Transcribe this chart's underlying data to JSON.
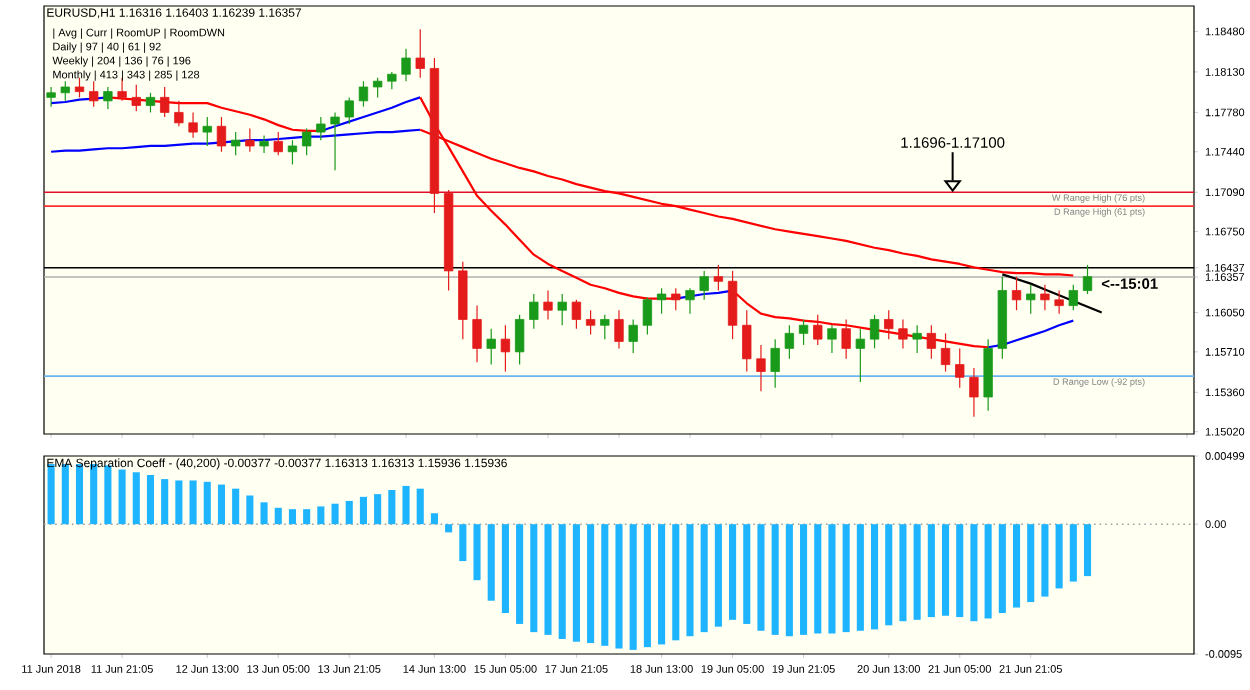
{
  "chart_data": [
    {
      "type": "candlestick",
      "title": "EURUSD,H1 1.16316 1.16403 1.16239 1.16357",
      "categories": [
        null,
        null,
        null,
        null,
        null,
        null,
        null,
        null,
        null,
        null,
        null,
        null,
        null,
        null,
        null,
        null,
        null,
        null,
        null,
        null,
        null,
        null,
        null,
        null,
        null,
        null,
        null,
        null,
        null,
        null,
        null,
        null,
        null,
        null,
        null,
        null,
        null,
        null,
        null,
        null,
        null,
        null,
        null,
        null,
        null,
        null,
        null,
        null,
        null,
        null,
        null,
        null,
        null,
        null,
        null,
        null,
        null,
        null,
        null,
        null,
        null,
        null,
        null,
        null,
        null,
        null,
        null,
        null,
        null,
        null,
        null,
        null,
        null,
        null,
        null,
        null,
        null,
        null,
        null,
        null,
        null
      ],
      "ohlc": [
        [
          1.1791,
          1.18,
          1.1783,
          1.1795
        ],
        [
          1.1795,
          1.1805,
          1.1788,
          1.18
        ],
        [
          1.18,
          1.1808,
          1.1791,
          1.1796
        ],
        [
          1.1796,
          1.1805,
          1.1783,
          1.1788
        ],
        [
          1.1788,
          1.18,
          1.1781,
          1.1796
        ],
        [
          1.1796,
          1.1808,
          1.1788,
          1.1791
        ],
        [
          1.1791,
          1.1802,
          1.1779,
          1.1784
        ],
        [
          1.1784,
          1.1795,
          1.1778,
          1.1791
        ],
        [
          1.1791,
          1.18,
          1.1774,
          1.1778
        ],
        [
          1.1778,
          1.1788,
          1.1766,
          1.1769
        ],
        [
          1.1769,
          1.1778,
          1.1756,
          1.1761
        ],
        [
          1.1761,
          1.1774,
          1.1749,
          1.1766
        ],
        [
          1.1766,
          1.1774,
          1.1744,
          1.1749
        ],
        [
          1.1749,
          1.1761,
          1.1741,
          1.1754
        ],
        [
          1.1754,
          1.1764,
          1.1744,
          1.1749
        ],
        [
          1.1749,
          1.1758,
          1.1743,
          1.1753
        ],
        [
          1.1753,
          1.1761,
          1.1741,
          1.1744
        ],
        [
          1.1744,
          1.1754,
          1.1733,
          1.1749
        ],
        [
          1.1749,
          1.1764,
          1.1741,
          1.1761
        ],
        [
          1.1761,
          1.1774,
          1.1754,
          1.1768
        ],
        [
          1.1768,
          1.1778,
          1.1728,
          1.1774
        ],
        [
          1.1774,
          1.1791,
          1.1768,
          1.1788
        ],
        [
          1.1788,
          1.1805,
          1.1783,
          1.18
        ],
        [
          1.18,
          1.1808,
          1.1791,
          1.1805
        ],
        [
          1.1805,
          1.1813,
          1.1798,
          1.1811
        ],
        [
          1.1811,
          1.1833,
          1.1805,
          1.1825
        ],
        [
          1.1825,
          1.185,
          1.1808,
          1.1816
        ],
        [
          1.1816,
          1.1825,
          1.1691,
          1.1708
        ],
        [
          1.1708,
          1.1711,
          1.1624,
          1.1641
        ],
        [
          1.1641,
          1.1649,
          1.1582,
          1.1599
        ],
        [
          1.1599,
          1.1611,
          1.1562,
          1.1574
        ],
        [
          1.1574,
          1.1591,
          1.156,
          1.1582
        ],
        [
          1.1582,
          1.1594,
          1.1554,
          1.1571
        ],
        [
          1.1571,
          1.1603,
          1.156,
          1.1599
        ],
        [
          1.1599,
          1.1621,
          1.1591,
          1.1614
        ],
        [
          1.1614,
          1.1624,
          1.1599,
          1.1607
        ],
        [
          1.1607,
          1.1621,
          1.1594,
          1.1614
        ],
        [
          1.1614,
          1.1616,
          1.1591,
          1.1599
        ],
        [
          1.1599,
          1.1607,
          1.1586,
          1.1594
        ],
        [
          1.1594,
          1.1603,
          1.1582,
          1.1599
        ],
        [
          1.1599,
          1.1607,
          1.1574,
          1.158
        ],
        [
          1.158,
          1.1599,
          1.157,
          1.1594
        ],
        [
          1.1594,
          1.1618,
          1.1586,
          1.1616
        ],
        [
          1.1616,
          1.1626,
          1.1604,
          1.1621
        ],
        [
          1.1621,
          1.1626,
          1.1607,
          1.1616
        ],
        [
          1.1616,
          1.1626,
          1.1604,
          1.1624
        ],
        [
          1.1624,
          1.1641,
          1.1616,
          1.1636
        ],
        [
          1.1636,
          1.1646,
          1.1624,
          1.1632
        ],
        [
          1.1632,
          1.1641,
          1.1582,
          1.1594
        ],
        [
          1.1594,
          1.1607,
          1.1554,
          1.1565
        ],
        [
          1.1565,
          1.1577,
          1.1537,
          1.1554
        ],
        [
          1.1554,
          1.1582,
          1.154,
          1.1574
        ],
        [
          1.1574,
          1.1594,
          1.1565,
          1.1587
        ],
        [
          1.1587,
          1.1599,
          1.1577,
          1.1594
        ],
        [
          1.1594,
          1.1603,
          1.1577,
          1.1582
        ],
        [
          1.1582,
          1.1594,
          1.157,
          1.1591
        ],
        [
          1.1591,
          1.1599,
          1.1565,
          1.1574
        ],
        [
          1.1574,
          1.1591,
          1.1545,
          1.1582
        ],
        [
          1.1582,
          1.1603,
          1.1574,
          1.1599
        ],
        [
          1.1599,
          1.1607,
          1.1582,
          1.1591
        ],
        [
          1.1591,
          1.1599,
          1.1574,
          1.1582
        ],
        [
          1.1582,
          1.1594,
          1.157,
          1.1587
        ],
        [
          1.1587,
          1.1594,
          1.1565,
          1.1574
        ],
        [
          1.1574,
          1.1587,
          1.1554,
          1.156
        ],
        [
          1.156,
          1.1574,
          1.154,
          1.1549
        ],
        [
          1.1549,
          1.1557,
          1.1515,
          1.1532
        ],
        [
          1.1532,
          1.1582,
          1.152,
          1.1574
        ],
        [
          1.1574,
          1.1636,
          1.1565,
          1.1624
        ],
        [
          1.1624,
          1.1636,
          1.1607,
          1.1616
        ],
        [
          1.1616,
          1.1629,
          1.1604,
          1.1621
        ],
        [
          1.1621,
          1.1629,
          1.1607,
          1.1616
        ],
        [
          1.1616,
          1.1624,
          1.1604,
          1.1611
        ],
        [
          1.1611,
          1.1629,
          1.1607,
          1.1624
        ],
        [
          1.1624,
          1.1646,
          1.1621,
          1.1636
        ],
        null,
        null,
        null,
        null,
        null,
        null,
        null
      ],
      "colors": [
        "#1a9a1a",
        "#1a9a1a",
        "#e41b1b",
        "#e41b1b",
        "#1a9a1a",
        "#e41b1b",
        "#e41b1b",
        "#1a9a1a",
        "#e41b1b",
        "#e41b1b",
        "#e41b1b",
        "#1a9a1a",
        "#e41b1b",
        "#1a9a1a",
        "#e41b1b",
        "#1a9a1a",
        "#e41b1b",
        "#1a9a1a",
        "#1a9a1a",
        "#1a9a1a",
        "#1a9a1a",
        "#1a9a1a",
        "#1a9a1a",
        "#1a9a1a",
        "#1a9a1a",
        "#1a9a1a",
        "#e41b1b",
        "#e41b1b",
        "#e41b1b",
        "#e41b1b",
        "#e41b1b",
        "#1a9a1a",
        "#e41b1b",
        "#1a9a1a",
        "#1a9a1a",
        "#e41b1b",
        "#1a9a1a",
        "#e41b1b",
        "#e41b1b",
        "#1a9a1a",
        "#e41b1b",
        "#1a9a1a",
        "#1a9a1a",
        "#1a9a1a",
        "#e41b1b",
        "#1a9a1a",
        "#1a9a1a",
        "#e41b1b",
        "#e41b1b",
        "#e41b1b",
        "#e41b1b",
        "#1a9a1a",
        "#1a9a1a",
        "#1a9a1a",
        "#e41b1b",
        "#1a9a1a",
        "#e41b1b",
        "#1a9a1a",
        "#1a9a1a",
        "#e41b1b",
        "#e41b1b",
        "#1a9a1a",
        "#e41b1b",
        "#e41b1b",
        "#e41b1b",
        "#e41b1b",
        "#1a9a1a",
        "#1a9a1a",
        "#e41b1b",
        "#1a9a1a",
        "#e41b1b",
        "#e41b1b",
        "#1a9a1a",
        "#1a9a1a",
        null,
        null,
        null,
        null,
        null,
        null,
        null
      ],
      "series": [
        {
          "type": "line",
          "color": "#0000ff",
          "values": [
            1.1786,
            1.1787,
            1.1789,
            1.179,
            1.1791,
            null,
            null,
            null,
            null,
            null,
            null,
            null,
            null,
            null,
            null,
            null,
            null,
            null,
            null,
            null,
            null,
            null,
            null,
            null,
            null,
            null,
            null,
            null,
            null,
            null,
            null,
            null,
            null,
            null,
            null,
            null,
            null,
            null,
            null,
            null,
            null,
            null,
            null,
            null,
            null,
            null,
            null,
            null,
            null,
            null,
            null,
            null,
            null,
            null,
            null,
            null,
            null,
            null,
            null,
            null,
            null,
            null,
            null,
            null,
            null,
            null,
            null,
            null,
            null,
            null,
            null,
            null,
            null,
            null,
            null,
            null,
            null,
            null,
            null,
            null,
            null
          ]
        },
        {
          "type": "line",
          "color": "#ff0000",
          "values": [
            null,
            null,
            null,
            null,
            1.1791,
            1.179,
            1.1789,
            1.1788,
            1.1787,
            1.1786,
            1.1786,
            1.1786,
            1.1782,
            1.1779,
            1.1776,
            1.1772,
            1.1767,
            1.1763,
            1.1762,
            1.1762,
            null,
            null,
            null,
            null,
            null,
            null,
            null,
            null,
            null,
            null,
            null,
            null,
            null,
            null,
            null,
            null,
            null,
            null,
            null,
            null,
            null,
            null,
            null,
            null,
            null,
            null,
            null,
            null,
            null,
            null,
            null,
            null,
            null,
            null,
            null,
            null,
            null,
            null,
            null,
            null,
            null,
            null,
            null,
            null,
            null,
            null,
            null,
            null,
            null,
            null,
            null,
            null,
            null,
            null,
            null,
            null,
            null,
            null,
            null,
            null,
            null
          ]
        },
        {
          "type": "line",
          "color": "#0000ff",
          "values": [
            null,
            null,
            null,
            null,
            null,
            null,
            null,
            null,
            null,
            null,
            null,
            null,
            null,
            null,
            null,
            null,
            null,
            null,
            null,
            1.1762,
            1.1766,
            1.177,
            1.1774,
            1.1778,
            1.1782,
            1.1787,
            1.1791,
            null,
            null,
            null,
            null,
            null,
            null,
            null,
            null,
            null,
            null,
            null,
            null,
            null,
            null,
            null,
            null,
            null,
            null,
            null,
            null,
            null,
            null,
            null,
            null,
            null,
            null,
            null,
            null,
            null,
            null,
            null,
            null,
            null,
            null,
            null,
            null,
            null,
            null,
            null,
            null,
            null,
            null,
            null,
            null,
            null,
            null,
            null,
            null,
            null,
            null,
            null,
            null,
            null,
            null
          ]
        },
        {
          "type": "line",
          "color": "#ff0000",
          "values": [
            null,
            null,
            null,
            null,
            null,
            null,
            null,
            null,
            null,
            null,
            null,
            null,
            null,
            null,
            null,
            null,
            null,
            null,
            null,
            null,
            null,
            null,
            null,
            null,
            null,
            null,
            1.1791,
            1.1768,
            1.1748,
            1.1727,
            1.1706,
            1.1693,
            1.1681,
            1.1668,
            1.1655,
            1.1647,
            1.1641,
            1.1635,
            1.1629,
            1.1626,
            1.1622,
            1.1619,
            1.1617,
            1.1617,
            1.1617,
            null,
            null,
            null,
            null,
            null,
            null,
            null,
            null,
            null,
            null,
            null,
            null,
            null,
            null,
            null,
            null,
            null,
            null,
            null,
            null,
            null,
            null,
            null,
            null,
            null,
            null,
            null,
            null,
            null,
            null,
            null,
            null,
            null,
            null,
            null,
            null
          ]
        },
        {
          "type": "line",
          "color": "#0000ff",
          "values": [
            null,
            null,
            null,
            null,
            null,
            null,
            null,
            null,
            null,
            null,
            null,
            null,
            null,
            null,
            null,
            null,
            null,
            null,
            null,
            null,
            null,
            null,
            null,
            null,
            null,
            null,
            null,
            null,
            null,
            null,
            null,
            null,
            null,
            null,
            null,
            null,
            null,
            null,
            null,
            null,
            null,
            null,
            null,
            null,
            1.1617,
            1.1619,
            1.1621,
            1.1622,
            1.1624,
            null,
            null,
            null,
            null,
            null,
            null,
            null,
            null,
            null,
            null,
            null,
            null,
            null,
            null,
            null,
            null,
            null,
            null,
            null,
            null,
            null,
            null,
            null,
            null,
            null,
            null,
            null,
            null,
            null,
            null,
            null,
            null
          ]
        },
        {
          "type": "line",
          "color": "#ff0000",
          "values": [
            null,
            null,
            null,
            null,
            null,
            null,
            null,
            null,
            null,
            null,
            null,
            null,
            null,
            null,
            null,
            null,
            null,
            null,
            null,
            null,
            null,
            null,
            null,
            null,
            null,
            null,
            null,
            null,
            null,
            null,
            null,
            null,
            null,
            null,
            null,
            null,
            null,
            null,
            null,
            null,
            null,
            null,
            null,
            null,
            null,
            null,
            null,
            null,
            1.1624,
            1.1613,
            1.1604,
            1.1601,
            1.16,
            1.1598,
            1.1597,
            1.1595,
            1.1594,
            1.1592,
            1.159,
            1.1588,
            1.1586,
            1.1584,
            1.1582,
            1.158,
            1.1578,
            1.1576,
            1.1575,
            null,
            null,
            null,
            null,
            null,
            null,
            null,
            null,
            null,
            null,
            null,
            null,
            null,
            null
          ]
        },
        {
          "type": "line",
          "color": "#0000ff",
          "values": [
            null,
            null,
            null,
            null,
            null,
            null,
            null,
            null,
            null,
            null,
            null,
            null,
            null,
            null,
            null,
            null,
            null,
            null,
            null,
            null,
            null,
            null,
            null,
            null,
            null,
            null,
            null,
            null,
            null,
            null,
            null,
            null,
            null,
            null,
            null,
            null,
            null,
            null,
            null,
            null,
            null,
            null,
            null,
            null,
            null,
            null,
            null,
            null,
            null,
            null,
            null,
            null,
            null,
            null,
            null,
            null,
            null,
            null,
            null,
            null,
            null,
            null,
            null,
            null,
            null,
            null,
            1.1575,
            1.1577,
            1.1581,
            1.1585,
            1.1589,
            1.1594,
            1.1598,
            null,
            null,
            null,
            null,
            null,
            null,
            null,
            null
          ]
        },
        {
          "type": "line",
          "color": "#0000ff",
          "values": [
            1.1744,
            1.1745,
            1.1745,
            1.1746,
            1.1747,
            1.1747,
            1.1748,
            1.1749,
            1.1749,
            1.175,
            1.1751,
            1.1751,
            1.1752,
            1.1753,
            1.1754,
            1.1754,
            1.1755,
            1.1756,
            1.1757,
            1.1757,
            1.1758,
            1.1759,
            1.176,
            1.1761,
            1.1761,
            1.1762,
            1.1763,
            null,
            null,
            null,
            null,
            null,
            null,
            null,
            null,
            null,
            null,
            null,
            null,
            null,
            null,
            null,
            null,
            null,
            null,
            null,
            null,
            null,
            null,
            null,
            null,
            null,
            null,
            null,
            null,
            null,
            null,
            null,
            null,
            null,
            null,
            null,
            null,
            null,
            null,
            null,
            null,
            null,
            null,
            null,
            null,
            null,
            null,
            null,
            null,
            null,
            null,
            null,
            null,
            null,
            null
          ]
        },
        {
          "type": "line",
          "color": "#ff0000",
          "values": [
            null,
            null,
            null,
            null,
            null,
            null,
            null,
            null,
            null,
            null,
            null,
            null,
            null,
            null,
            null,
            null,
            null,
            null,
            null,
            null,
            null,
            null,
            null,
            null,
            null,
            null,
            1.1763,
            1.1758,
            1.1753,
            1.1748,
            1.1743,
            1.1738,
            1.1734,
            1.173,
            1.1727,
            1.1723,
            1.172,
            1.1716,
            1.1713,
            1.171,
            1.1708,
            1.1705,
            1.1702,
            1.1699,
            1.1697,
            1.1694,
            1.1691,
            1.1688,
            1.1686,
            1.1683,
            1.168,
            1.1677,
            1.1675,
            1.1673,
            1.1671,
            1.1669,
            1.1667,
            1.1664,
            1.1661,
            1.1659,
            1.1656,
            1.1654,
            1.1651,
            1.1649,
            1.1647,
            1.1644,
            1.1642,
            1.164,
            1.1639,
            1.1639,
            1.1638,
            1.1638,
            1.1637,
            null,
            null,
            null,
            null,
            null,
            null,
            null,
            null
          ]
        },
        {
          "type": "line",
          "color": "#000000",
          "values": [
            null,
            null,
            null,
            null,
            null,
            null,
            null,
            null,
            null,
            null,
            null,
            null,
            null,
            null,
            null,
            null,
            null,
            null,
            null,
            null,
            null,
            null,
            null,
            null,
            null,
            null,
            null,
            null,
            null,
            null,
            null,
            null,
            null,
            null,
            null,
            null,
            null,
            null,
            null,
            null,
            null,
            null,
            null,
            null,
            null,
            null,
            null,
            null,
            null,
            null,
            null,
            null,
            null,
            null,
            null,
            null,
            null,
            null,
            null,
            null,
            null,
            null,
            null,
            null,
            null,
            null,
            null,
            1.1638,
            1.1634,
            1.163,
            1.1625,
            1.162,
            1.1615,
            1.161,
            1.1605,
            null,
            null,
            null,
            null,
            null,
            null
          ]
        }
      ],
      "ylim": [
        1.15,
        1.187
      ],
      "yticks": [
        {
          "value": 1.1848,
          "label": "1.18480"
        },
        {
          "value": 1.1813,
          "label": "1.18130"
        },
        {
          "value": 1.1778,
          "label": "1.17780"
        },
        {
          "value": 1.1744,
          "label": "1.17440"
        },
        {
          "value": 1.1709,
          "label": "1.17090"
        },
        {
          "value": 1.1675,
          "label": "1.16750"
        },
        {
          "value": 1.16437,
          "label": "1.16437"
        },
        {
          "value": 1.16357,
          "label": "1.16357"
        },
        {
          "value": 1.1605,
          "label": "1.16050"
        },
        {
          "value": 1.1571,
          "label": "1.15710"
        },
        {
          "value": 1.1536,
          "label": "1.15360"
        },
        {
          "value": 1.1502,
          "label": "1.15020"
        }
      ],
      "tick_labels": "y",
      "ref_lines": [
        {
          "axis": "y",
          "value": 1.1709,
          "label": "W Range High (76 pts)",
          "color": "#e0102a"
        },
        {
          "axis": "y",
          "value": 1.1697,
          "label": "D Range High (61 pts)",
          "color": "#ff3030"
        },
        {
          "axis": "y",
          "value": 1.155,
          "label": "D Range Low (-92 pts)",
          "color": "#6ab4f0"
        },
        {
          "axis": "y",
          "value": 1.16437,
          "color": "#000000"
        },
        {
          "axis": "y",
          "value": 1.16357,
          "color": "#b0b0b0"
        }
      ],
      "annotations": [
        "| Avg | Curr | RoomUP | RoomDWN",
        "Daily | 97 | 40 | 61 | 92",
        "Weekly | 204 | 136 | 76 | 196",
        "Monthly | 413 | 343 | 285 | 128",
        {
          "text": "1.1696-1.17100",
          "y": 1.1709
        },
        {
          "text": "<--15:01",
          "y": 1.163
        }
      ]
    },
    {
      "type": "bar",
      "title": "EMA Separation Coeff - (40,200) -0.00377 -0.00377 1.16313 1.16313 1.15936 1.15936",
      "categories": [
        "11 Jun 2018",
        null,
        null,
        null,
        null,
        "11 Jun 21:05",
        null,
        null,
        null,
        null,
        null,
        "12 Jun 13:00",
        null,
        null,
        null,
        null,
        "13 Jun 05:00",
        null,
        null,
        null,
        null,
        "13 Jun 21:05",
        null,
        null,
        null,
        null,
        null,
        "14 Jun 13:00",
        null,
        null,
        null,
        null,
        "15 Jun 05:00",
        null,
        null,
        null,
        null,
        "17 Jun 21:05",
        null,
        null,
        null,
        null,
        null,
        "18 Jun 13:00",
        null,
        null,
        null,
        null,
        "19 Jun 05:00",
        null,
        null,
        null,
        null,
        "19 Jun 21:05",
        null,
        null,
        null,
        null,
        null,
        "20 Jun 13:00",
        null,
        null,
        null,
        null,
        "21 Jun 05:00",
        null,
        null,
        null,
        null,
        "21 Jun 21:05",
        null,
        null,
        null,
        null,
        null,
        null,
        null,
        null,
        null,
        null,
        null
      ],
      "values": [
        0.0044,
        0.0044,
        0.0044,
        0.0044,
        0.0043,
        0.004,
        0.0038,
        0.0036,
        0.0033,
        0.0032,
        0.0032,
        0.0031,
        0.0029,
        0.0026,
        0.0021,
        0.0016,
        0.0012,
        0.0011,
        0.0011,
        0.0013,
        0.0015,
        0.0017,
        0.002,
        0.0022,
        0.0025,
        0.0028,
        0.0026,
        0.0008,
        -0.0006,
        -0.0027,
        -0.0041,
        -0.0056,
        -0.0065,
        -0.0073,
        -0.0079,
        -0.0081,
        -0.0084,
        -0.0086,
        -0.0087,
        -0.0089,
        -0.0091,
        -0.0092,
        -0.009,
        -0.0088,
        -0.0085,
        -0.0082,
        -0.0079,
        -0.0075,
        -0.007,
        -0.0073,
        -0.0078,
        -0.0081,
        -0.0082,
        -0.0081,
        -0.008,
        -0.008,
        -0.0079,
        -0.0078,
        -0.0077,
        -0.0074,
        -0.0071,
        -0.007,
        -0.0068,
        -0.0067,
        -0.0068,
        -0.0071,
        -0.0069,
        -0.0065,
        -0.0061,
        -0.0057,
        -0.0053,
        -0.0047,
        -0.0042,
        -0.0038,
        null,
        null,
        null,
        null,
        null,
        null,
        null
      ],
      "color": "#1eb4ff",
      "ylim": [
        -0.0095,
        0.00499
      ],
      "yticks": [
        {
          "value": 0.00499,
          "label": "0.00499"
        },
        {
          "value": 0,
          "label": "0.00"
        },
        {
          "value": -0.0095,
          "label": "-0.0095"
        }
      ],
      "ref_lines": [
        {
          "axis": "y",
          "value": 0,
          "color": "#a0a0a0",
          "line_style": "dotted"
        }
      ]
    }
  ]
}
